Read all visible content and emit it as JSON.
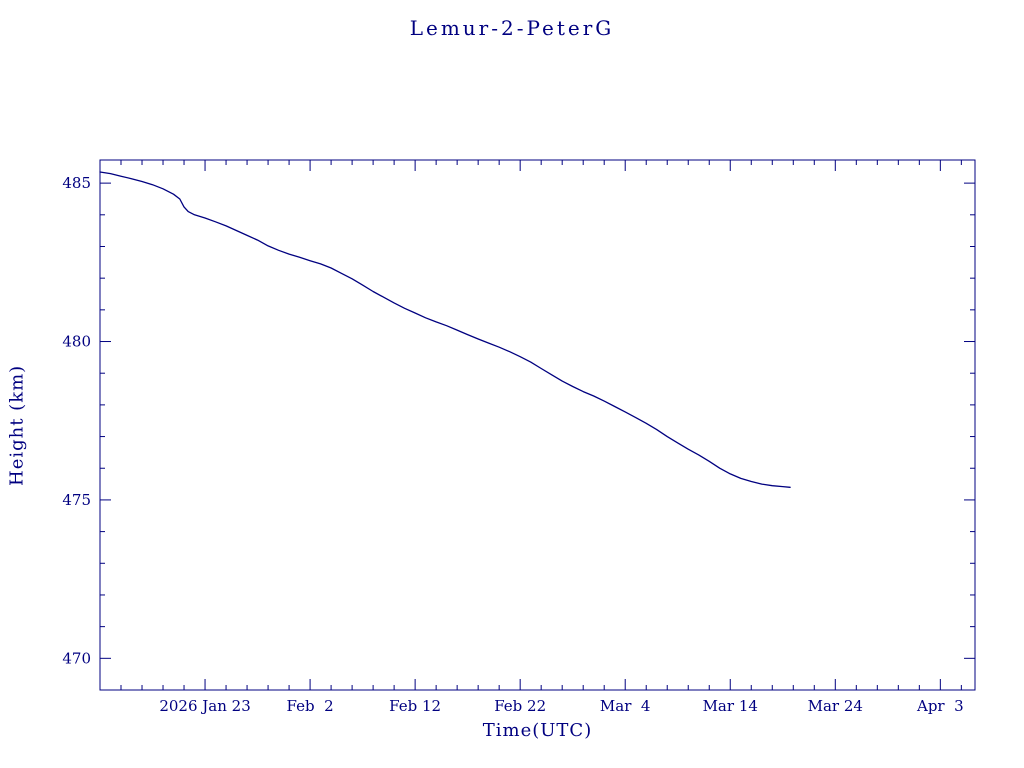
{
  "page": {
    "background": "#ffffff"
  },
  "chart_data": {
    "type": "line",
    "title": "Lemur-2-PeterG",
    "xlabel": "Time(UTC)",
    "ylabel": "Height (km)",
    "x_unit": "days since first plotted sample (2026, mid-January)",
    "xlim": [
      0,
      83.3
    ],
    "ylim": [
      469.0,
      485.73
    ],
    "grid": false,
    "legend": "none",
    "frame_color": "#000080",
    "line_color": "#000080",
    "text_color": "#000080",
    "x_ticks": [
      {
        "value": 10,
        "label": "2026 Jan 23"
      },
      {
        "value": 20,
        "label": "Feb  2"
      },
      {
        "value": 30,
        "label": "Feb 12"
      },
      {
        "value": 40,
        "label": "Feb 22"
      },
      {
        "value": 50,
        "label": "Mar  4"
      },
      {
        "value": 60,
        "label": "Mar 14"
      },
      {
        "value": 70,
        "label": "Mar 24"
      },
      {
        "value": 80,
        "label": "Apr  3"
      }
    ],
    "x_minor_step": 2,
    "y_ticks": [
      {
        "value": 470,
        "label": "470"
      },
      {
        "value": 475,
        "label": "475"
      },
      {
        "value": 480,
        "label": "480"
      },
      {
        "value": 485,
        "label": "485"
      }
    ],
    "y_minor_step": 1,
    "series": [
      {
        "name": "Lemur-2-PeterG height (km)",
        "points": [
          [
            0,
            485.35
          ],
          [
            1,
            485.3
          ],
          [
            2,
            485.22
          ],
          [
            3,
            485.14
          ],
          [
            4,
            485.05
          ],
          [
            5,
            484.95
          ],
          [
            6,
            484.82
          ],
          [
            7,
            484.65
          ],
          [
            7.6,
            484.5
          ],
          [
            8,
            484.25
          ],
          [
            8.4,
            484.1
          ],
          [
            9,
            484.0
          ],
          [
            10,
            483.9
          ],
          [
            11,
            483.78
          ],
          [
            12,
            483.65
          ],
          [
            13,
            483.5
          ],
          [
            14,
            483.35
          ],
          [
            15,
            483.2
          ],
          [
            16,
            483.02
          ],
          [
            17,
            482.88
          ],
          [
            18,
            482.76
          ],
          [
            19,
            482.66
          ],
          [
            20,
            482.55
          ],
          [
            21,
            482.45
          ],
          [
            22,
            482.32
          ],
          [
            23,
            482.15
          ],
          [
            24,
            481.98
          ],
          [
            25,
            481.78
          ],
          [
            26,
            481.58
          ],
          [
            27,
            481.4
          ],
          [
            28,
            481.22
          ],
          [
            29,
            481.05
          ],
          [
            30,
            480.9
          ],
          [
            31,
            480.75
          ],
          [
            32,
            480.62
          ],
          [
            33,
            480.5
          ],
          [
            34,
            480.36
          ],
          [
            35,
            480.22
          ],
          [
            36,
            480.08
          ],
          [
            37,
            479.95
          ],
          [
            38,
            479.82
          ],
          [
            39,
            479.68
          ],
          [
            40,
            479.52
          ],
          [
            41,
            479.35
          ],
          [
            42,
            479.15
          ],
          [
            43,
            478.95
          ],
          [
            44,
            478.75
          ],
          [
            45,
            478.58
          ],
          [
            46,
            478.42
          ],
          [
            47,
            478.28
          ],
          [
            48,
            478.12
          ],
          [
            49,
            477.95
          ],
          [
            50,
            477.78
          ],
          [
            51,
            477.6
          ],
          [
            52,
            477.42
          ],
          [
            53,
            477.22
          ],
          [
            54,
            477.0
          ],
          [
            55,
            476.8
          ],
          [
            56,
            476.6
          ],
          [
            57,
            476.42
          ],
          [
            58,
            476.22
          ],
          [
            59,
            476.0
          ],
          [
            60,
            475.82
          ],
          [
            61,
            475.68
          ],
          [
            62,
            475.58
          ],
          [
            63,
            475.5
          ],
          [
            64,
            475.45
          ],
          [
            65,
            475.42
          ],
          [
            65.7,
            475.4
          ]
        ]
      }
    ]
  }
}
